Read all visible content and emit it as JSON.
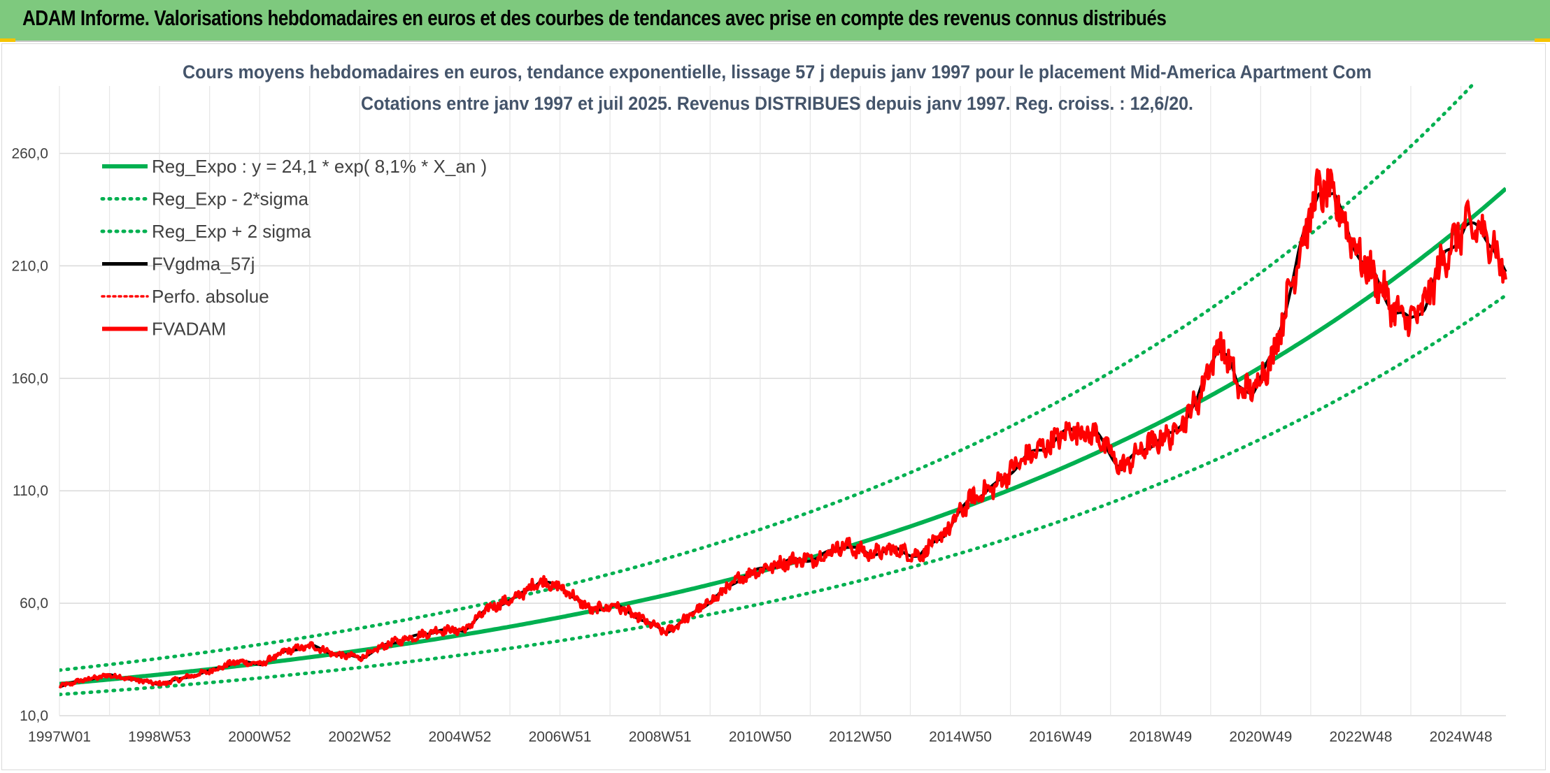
{
  "header": {
    "title": "ADAM Informe. Valorisations hebdomadaires en euros et des courbes de tendances avec prise en compte des revenus connus distribués"
  },
  "colors": {
    "banner": "#7ec97e",
    "reg_green": "#00b050",
    "fvgdma_black": "#000000",
    "fvadam_red": "#ff0000",
    "subtitle_text": "#44546a"
  },
  "chart_data": {
    "type": "line",
    "title_line1": "Cours moyens hebdomadaires en euros, tendance exponentielle, lissage 57 j depuis janv 1997 pour le placement Mid-America Apartment Com",
    "title_line2": "Cotations entre janv 1997 et juil 2025. Revenus DISTRIBUES depuis janv 1997. Reg. croiss. : 12,6/20.",
    "x_ticks": [
      "1997W01",
      "1998W53",
      "2000W52",
      "2002W52",
      "2004W52",
      "2006W51",
      "2008W51",
      "2010W50",
      "2012W50",
      "2014W50",
      "2016W49",
      "2018W49",
      "2020W49",
      "2022W48",
      "2024W48"
    ],
    "x_range": [
      1997.0,
      2025.6
    ],
    "y_ticks": [
      "10,0",
      "60,0",
      "110,0",
      "160,0",
      "210,0",
      "260,0"
    ],
    "ylim": [
      10,
      290
    ],
    "grid": true,
    "legend_position": "top-left",
    "regression": {
      "a": 24.1,
      "rate": 0.081,
      "x_start": 1997.0,
      "sigma_factor": 0.127
    },
    "series": [
      {
        "name": "Reg_Expo : y = 24,1 * exp( 8,1% *  X_an )",
        "style": "solid-green"
      },
      {
        "name": "Reg_Exp - 2*sigma",
        "style": "dotted-green"
      },
      {
        "name": "Reg_Exp + 2 sigma",
        "style": "dotted-green"
      },
      {
        "name": "FVgdma_57j",
        "style": "solid-black"
      },
      {
        "name": "Perfo. absolue",
        "style": "dotted-red"
      },
      {
        "name": "FVADAM",
        "style": "solid-red"
      }
    ],
    "price_points": {
      "x": [
        1997.0,
        1997.5,
        1998.0,
        1998.5,
        1999.0,
        1999.5,
        2000.0,
        2000.5,
        2001.0,
        2001.5,
        2002.0,
        2002.5,
        2003.0,
        2003.5,
        2004.0,
        2004.5,
        2005.0,
        2005.5,
        2006.0,
        2006.5,
        2007.0,
        2007.5,
        2008.0,
        2008.5,
        2009.0,
        2009.5,
        2010.0,
        2010.5,
        2011.0,
        2011.5,
        2012.0,
        2012.5,
        2013.0,
        2013.5,
        2014.0,
        2014.5,
        2015.0,
        2015.5,
        2016.0,
        2016.5,
        2017.0,
        2017.5,
        2018.0,
        2018.5,
        2019.0,
        2019.5,
        2019.9,
        2020.1,
        2020.3,
        2020.6,
        2021.0,
        2021.5,
        2021.9,
        2022.2,
        2022.5,
        2022.8,
        2023.0,
        2023.4,
        2023.7,
        2024.0,
        2024.4,
        2024.8,
        2025.1,
        2025.35,
        2025.6
      ],
      "y": [
        23.0,
        26.0,
        28.0,
        26.0,
        24.0,
        27.0,
        30.0,
        34.0,
        33.0,
        39.0,
        41.0,
        37.0,
        36.0,
        42.0,
        45.0,
        48.0,
        48.0,
        58.0,
        62.0,
        70.0,
        66.0,
        57.0,
        59.0,
        53.0,
        47.0,
        55.0,
        63.0,
        72.0,
        76.0,
        79.0,
        80.0,
        86.0,
        82.0,
        84.0,
        81.0,
        91.0,
        106.0,
        112.0,
        123.0,
        130.0,
        137.0,
        135.0,
        120.0,
        130.0,
        135.0,
        150.0,
        175.0,
        170.0,
        155.0,
        155.0,
        170.0,
        215.0,
        245.0,
        240.0,
        225.0,
        210.0,
        205.0,
        190.0,
        185.0,
        193.0,
        215.0,
        228.0,
        225.0,
        220.0,
        205.0
      ]
    }
  }
}
